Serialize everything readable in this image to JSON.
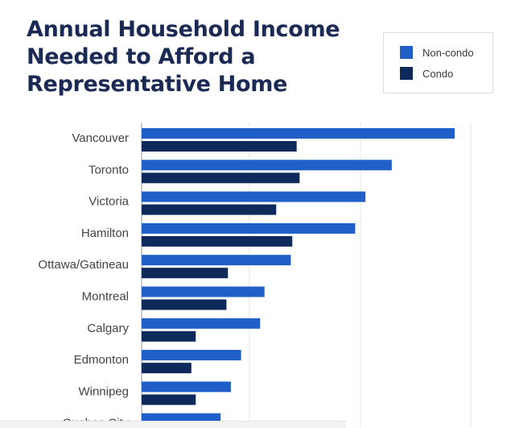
{
  "chart_data": {
    "type": "bar",
    "orientation": "horizontal",
    "title_line1": "Annual Household Income",
    "title_line2": "Needed to Afford a",
    "title_line3": "Representative Home",
    "categories": [
      "Vancouver",
      "Toronto",
      "Victoria",
      "Hamilton",
      "Ottawa/Gatineau",
      "Montreal",
      "Calgary",
      "Edmonton",
      "Winnipeg",
      "Quebec City"
    ],
    "series": [
      {
        "name": "Non-condo",
        "color": "#1f5fc7",
        "values": [
          214,
          171,
          153,
          146,
          102,
          84,
          81,
          68,
          61,
          54
        ]
      },
      {
        "name": "Condo",
        "color": "#0e2a5a",
        "values": [
          106,
          108,
          92,
          103,
          59,
          58,
          37,
          34,
          37,
          null
        ]
      }
    ],
    "xlim": [
      0,
      225
    ],
    "grid": true,
    "legend_position": "top-right"
  }
}
